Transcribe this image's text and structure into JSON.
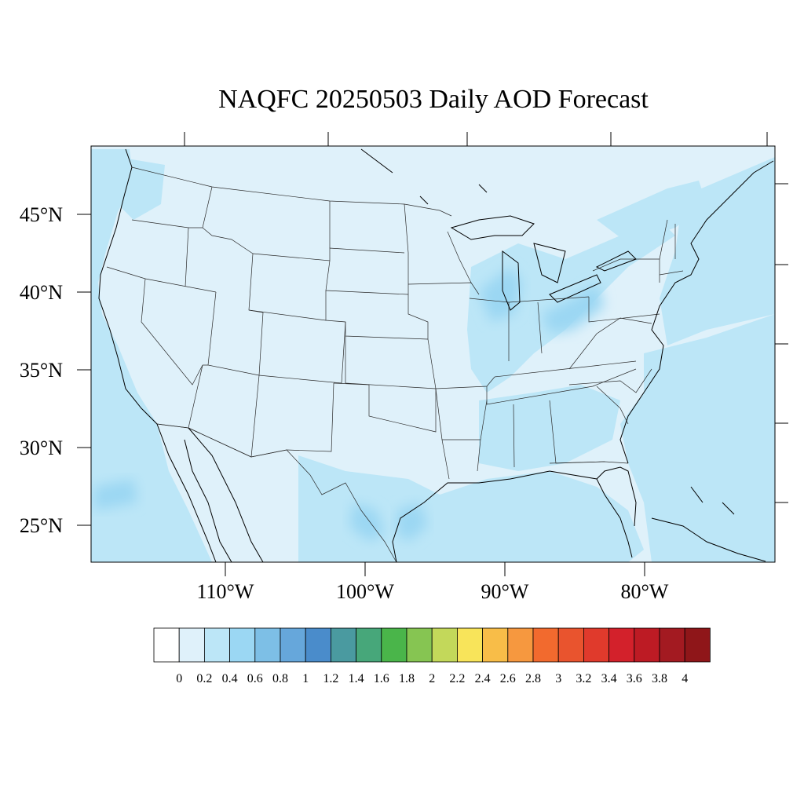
{
  "title": "NAQFC 20250503 Daily AOD Forecast",
  "latitude_labels": [
    "45°N",
    "40°N",
    "35°N",
    "30°N",
    "25°N"
  ],
  "longitude_labels": [
    "110°W",
    "100°W",
    "90°W",
    "80°W"
  ],
  "colorbar": {
    "bins": [
      {
        "color": "#ffffff"
      },
      {
        "color": "#dff1fa"
      },
      {
        "color": "#bce6f7"
      },
      {
        "color": "#9bd7f3"
      },
      {
        "color": "#7dbfe6"
      },
      {
        "color": "#66a7db"
      },
      {
        "color": "#4a8ccb"
      },
      {
        "color": "#4a9aa0"
      },
      {
        "color": "#47a77a"
      },
      {
        "color": "#4ab54a"
      },
      {
        "color": "#86c552"
      },
      {
        "color": "#c3d85a"
      },
      {
        "color": "#f8e45a"
      },
      {
        "color": "#f8bd48"
      },
      {
        "color": "#f6983f"
      },
      {
        "color": "#f26a2e"
      },
      {
        "color": "#e9542e"
      },
      {
        "color": "#e03a2c"
      },
      {
        "color": "#d3212b"
      },
      {
        "color": "#bd1b24"
      },
      {
        "color": "#a31a21"
      },
      {
        "color": "#8f1619"
      }
    ],
    "labels": [
      "0",
      "0.2",
      "0.4",
      "0.6",
      "0.8",
      "1",
      "1.2",
      "1.4",
      "1.6",
      "1.8",
      "2",
      "2.2",
      "2.4",
      "2.6",
      "2.8",
      "3",
      "3.2",
      "3.4",
      "3.6",
      "3.8",
      "4"
    ]
  },
  "colors": {
    "land_base": "#dff1fa",
    "aod_low": "#bce6f7",
    "aod_mid": "#9bd7f3",
    "border": "#2b2b2b",
    "coast": "#000000"
  }
}
